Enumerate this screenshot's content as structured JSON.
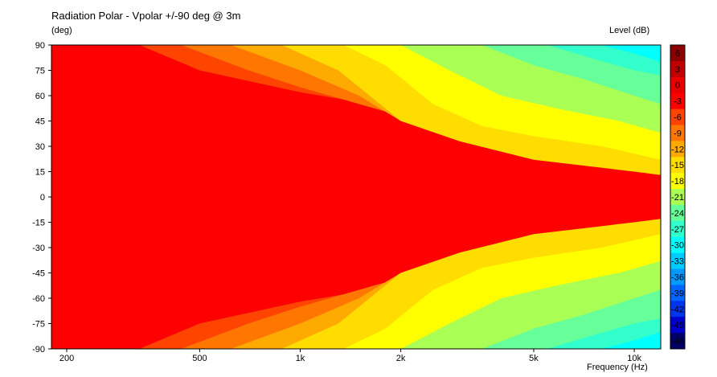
{
  "chart_data": {
    "type": "heatmap",
    "title": "Radiation Polar - Vpolar +/-90 deg @ 3m",
    "ylabel": "(deg)",
    "xlabel": "Frequency  (Hz)",
    "colorbar_label": "Level  (dB)",
    "x_scale": "log",
    "xlim": [
      180,
      12000
    ],
    "ylim": [
      -90,
      90
    ],
    "x_ticks": [
      {
        "value": 200,
        "label": "200"
      },
      {
        "value": 500,
        "label": "500"
      },
      {
        "value": 1000,
        "label": "1k"
      },
      {
        "value": 2000,
        "label": "2k"
      },
      {
        "value": 5000,
        "label": "5k"
      },
      {
        "value": 10000,
        "label": "10k"
      }
    ],
    "y_ticks": [
      90,
      75,
      60,
      45,
      30,
      15,
      0,
      -15,
      -30,
      -45,
      -60,
      -75,
      -90
    ],
    "colorbar": {
      "levels": [
        6,
        3,
        0,
        -3,
        -6,
        -9,
        -12,
        -15,
        -18,
        -21,
        -24,
        -27,
        -30,
        -33,
        -36,
        -39,
        -42,
        -45,
        -48
      ],
      "colors": [
        "#8b0000",
        "#c00000",
        "#e80000",
        "#ff0000",
        "#ff4400",
        "#ff7700",
        "#ffaa00",
        "#ffdd00",
        "#ffff00",
        "#aaff55",
        "#66ff99",
        "#33ffcc",
        "#00ffff",
        "#00ccff",
        "#0099ff",
        "#0066ff",
        "#0033ee",
        "#0000cc",
        "#000066"
      ]
    },
    "contours": [
      {
        "level": -3,
        "color": "#ff4400",
        "boundary": [
          [
            180,
            90
          ],
          [
            330,
            90
          ],
          [
            500,
            75
          ],
          [
            1000,
            62
          ],
          [
            2000,
            52
          ],
          [
            5000,
            40
          ],
          [
            10000,
            35
          ],
          [
            12000,
            32
          ]
        ]
      },
      {
        "level": -6,
        "color": "#ff7700",
        "boundary": [
          [
            180,
            90
          ],
          [
            440,
            90
          ],
          [
            700,
            75
          ],
          [
            1000,
            65
          ],
          [
            2000,
            48
          ],
          [
            5000,
            30
          ],
          [
            10000,
            22
          ],
          [
            12000,
            20
          ]
        ]
      },
      {
        "level": -9,
        "color": "#ffaa00",
        "boundary": [
          [
            180,
            90
          ],
          [
            620,
            90
          ],
          [
            1000,
            75
          ],
          [
            1500,
            60
          ],
          [
            2000,
            45
          ],
          [
            5000,
            23
          ],
          [
            10000,
            17
          ],
          [
            12000,
            15
          ]
        ]
      },
      {
        "level": -12,
        "color": "#ffdd00",
        "boundary": [
          [
            180,
            90
          ],
          [
            880,
            90
          ],
          [
            1300,
            75
          ],
          [
            2000,
            45
          ],
          [
            3000,
            33
          ],
          [
            5000,
            22
          ],
          [
            10000,
            15
          ],
          [
            12000,
            13
          ]
        ]
      },
      {
        "level": -15,
        "color": "#ffff00",
        "boundary": [
          [
            180,
            90
          ],
          [
            1350,
            90
          ],
          [
            1800,
            78
          ],
          [
            2500,
            55
          ],
          [
            3500,
            42
          ],
          [
            5000,
            36
          ],
          [
            8000,
            30
          ],
          [
            12000,
            22
          ]
        ]
      },
      {
        "level": -18,
        "color": "#aaff55",
        "boundary": [
          [
            180,
            90
          ],
          [
            2000,
            90
          ],
          [
            2800,
            75
          ],
          [
            4000,
            60
          ],
          [
            6000,
            52
          ],
          [
            9000,
            45
          ],
          [
            12000,
            38
          ]
        ]
      },
      {
        "level": -21,
        "color": "#66ff99",
        "boundary": [
          [
            180,
            90
          ],
          [
            3500,
            90
          ],
          [
            5000,
            78
          ],
          [
            7000,
            70
          ],
          [
            10000,
            60
          ],
          [
            12000,
            55
          ]
        ]
      },
      {
        "level": -24,
        "color": "#33ffcc",
        "boundary": [
          [
            180,
            90
          ],
          [
            5500,
            90
          ],
          [
            7500,
            82
          ],
          [
            10000,
            75
          ],
          [
            12000,
            72
          ]
        ]
      },
      {
        "level": -27,
        "color": "#00ffff",
        "boundary": [
          [
            180,
            90
          ],
          [
            8000,
            90
          ],
          [
            10000,
            85
          ],
          [
            12000,
            80
          ]
        ]
      }
    ],
    "base_level": 0,
    "base_color": "#ff0000",
    "symmetric_about_zero": true
  }
}
